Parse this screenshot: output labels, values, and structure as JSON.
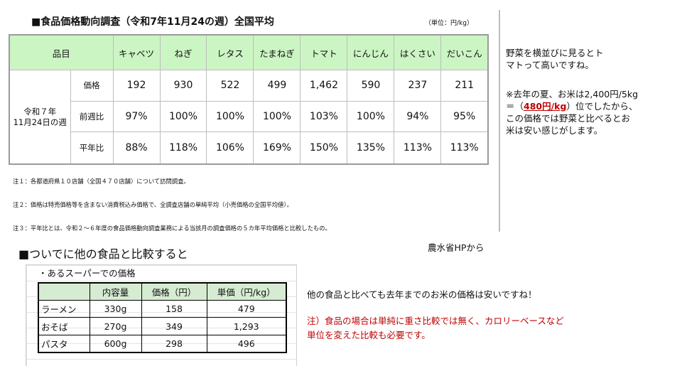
{
  "title": "■食品価格動向調査（令和7年11月24の週）全国平均",
  "unit": "（単位：円/kg）",
  "table": {
    "corner": "品目",
    "items": [
      "キャベツ",
      "ねぎ",
      "レタス",
      "たまねぎ",
      "トマト",
      "にんじん",
      "はくさい",
      "だいこん"
    ],
    "week_line1": "令和７年",
    "week_line2": "11月24日の週",
    "rows": [
      {
        "label": "価格",
        "values": [
          "192",
          "930",
          "522",
          "499",
          "1,462",
          "590",
          "237",
          "211"
        ]
      },
      {
        "label": "前週比",
        "values": [
          "97%",
          "100%",
          "100%",
          "100%",
          "103%",
          "100%",
          "94%",
          "95%"
        ]
      },
      {
        "label": "平年比",
        "values": [
          "88%",
          "118%",
          "106%",
          "169%",
          "150%",
          "135%",
          "113%",
          "113%"
        ]
      }
    ]
  },
  "notes": [
    "注１：各都道府県１０店舗（全国４７０店舗）について訪問調査。",
    "注２：価格は特売価格等を含まない消費税込み価格で、全調査店舗の単純平均（小売価格の全国平均値）。",
    "注３：平年比とは、令和２～６年度の食品価格動向調査業務による当該月の調査価格の５カ年平均価格と比較したもの。"
  ],
  "comment": {
    "line1": "野菜を横並びに見るとト",
    "line2": "マトって高いですね。",
    "p2_line1": "※去年の夏、お米は2,400円/5kg",
    "p2_pre": "＝（",
    "p2_highlight": "480円/kg",
    "p2_post": "）位でしたから、",
    "p2_line3": "この価格では野菜と比べるとお",
    "p2_line4": "米は安い感じがします。"
  },
  "sub_heading": "■ついでに他の食品と比較すると",
  "source": "農水省HPから",
  "comparison": {
    "sheet_title": "・あるスーパーでの価格",
    "headers": [
      "",
      "内容量",
      "価格（円）",
      "単価（円/kg）"
    ],
    "rows": [
      {
        "name": "ラーメン",
        "amount": "330g",
        "price": "158",
        "unit_price": "479"
      },
      {
        "name": "おそば",
        "amount": "270g",
        "price": "349",
        "unit_price": "1,293"
      },
      {
        "name": "パスタ",
        "amount": "600g",
        "price": "298",
        "unit_price": "496"
      }
    ]
  },
  "comparison_comment": "他の食品と比べても去年までのお米の価格は安いですね！",
  "comparison_note_line1": "注）食品の場合は単純に重さ比較では無く、カロリーベースなど",
  "comparison_note_line2": "単位を変えた比較も必要です。",
  "colors": {
    "header_green": "#ccf5c4",
    "highlight_red": "#c00000"
  }
}
